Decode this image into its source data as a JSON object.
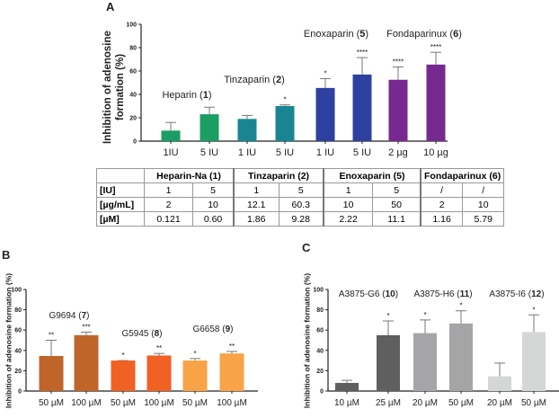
{
  "chart_data": [
    {
      "type": "bar",
      "panel": "A",
      "ylabel": [
        "Inhibition of adenosine",
        "formation (%)"
      ],
      "ylim": [
        0,
        100
      ],
      "yticks": [
        "0",
        "20",
        "40",
        "60",
        "80",
        "100"
      ],
      "categories": [
        "1IU",
        "5 IU",
        "1 IU",
        "5 IU",
        "1 IU",
        "5 IU",
        "2 µg",
        "10 µg"
      ],
      "values": [
        9,
        23,
        19,
        30,
        45.5,
        57,
        52.5,
        65.5
      ],
      "error_upper": [
        16,
        29,
        22,
        31,
        53.5,
        71.5,
        63.5,
        76
      ],
      "significance": [
        "",
        "",
        "",
        "*",
        "*",
        "****",
        "****",
        "****"
      ],
      "colors": [
        "#1a9e63",
        "#1a9e63",
        "#1a8592",
        "#1a8592",
        "#2e40a0",
        "#2e40a0",
        "#762a8f",
        "#762a8f"
      ],
      "groups": [
        {
          "name": "Heparin",
          "num": "1"
        },
        {
          "name": "Tinzaparin",
          "num": "2"
        },
        {
          "name": "Enoxaparin",
          "num": "5"
        },
        {
          "name": "Fondaparinux",
          "num": "6"
        }
      ]
    },
    {
      "type": "bar",
      "panel": "B",
      "ylabel": [
        "Inhibition of adenosine formation (%)"
      ],
      "ylim": [
        0,
        100
      ],
      "yticks": [
        "0",
        "20",
        "40",
        "60",
        "80",
        "100"
      ],
      "categories": [
        "50 µM",
        "100 µM",
        "50 µM",
        "100 µM",
        "50 µM",
        "100 µM"
      ],
      "values": [
        34.5,
        55,
        30,
        35,
        30,
        37
      ],
      "error_upper": [
        50,
        58,
        30,
        37,
        32,
        39
      ],
      "significance": [
        "**",
        "***",
        "*",
        "**",
        "*",
        "**"
      ],
      "colors": [
        "#c0652a",
        "#c0652a",
        "#f06124",
        "#f06124",
        "#f8a347",
        "#f8a347"
      ],
      "groups": [
        {
          "name": "G9694",
          "num": "7"
        },
        {
          "name": "G5945",
          "num": "8"
        },
        {
          "name": "G6658",
          "num": "9"
        }
      ]
    },
    {
      "type": "bar",
      "panel": "C",
      "ylabel": [
        "Inhibition of adenosine formation (%)"
      ],
      "ylim": [
        0,
        100
      ],
      "yticks": [
        "0",
        "20",
        "40",
        "60",
        "80",
        "100"
      ],
      "categories": [
        "10 µM",
        "25 µM",
        "20 µM",
        "50 µM",
        "20 µM",
        "50 µM"
      ],
      "values": [
        8,
        55,
        57,
        66.5,
        14.5,
        58
      ],
      "error_upper": [
        10.5,
        69,
        70,
        79,
        27.5,
        75
      ],
      "significance": [
        "",
        "*",
        "*",
        "*",
        "",
        "*"
      ],
      "colors": [
        "#5f5f5f",
        "#5f5f5f",
        "#a5a5a8",
        "#a5a5a8",
        "#d5d7d7",
        "#d5d7d7"
      ],
      "groups": [
        {
          "name": "A3875-G6",
          "num": "10"
        },
        {
          "name": "A3875-H6",
          "num": "11"
        },
        {
          "name": "A3875-I6",
          "num": "12"
        }
      ]
    }
  ],
  "table": {
    "headers": [
      {
        "name": "Heparin-Na",
        "num": "1"
      },
      {
        "name": "Tinzaparin",
        "num": "2"
      },
      {
        "name": "Enoxaparin",
        "num": "5"
      },
      {
        "name": "Fondaparinux",
        "num": "6"
      }
    ],
    "rows": [
      {
        "label": "[IU]",
        "cells": [
          "1",
          "5",
          "1",
          "5",
          "1",
          "5",
          "/",
          "/"
        ]
      },
      {
        "label": "[µg/mL]",
        "cells": [
          "2",
          "10",
          "12.1",
          "60.3",
          "10",
          "50",
          "2",
          "10"
        ]
      },
      {
        "label": "[µM]",
        "cells": [
          "0.121",
          "0.60",
          "1.86",
          "9.28",
          "2.22",
          "11.1",
          "1.16",
          "5.79"
        ]
      }
    ]
  }
}
